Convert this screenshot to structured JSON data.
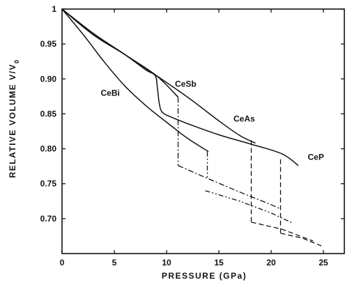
{
  "chart_data": {
    "type": "line",
    "xlabel": "PRESSURE   (GPa)",
    "ylabel": "RELATIVE VOLUME  V/V0",
    "ylabel_parts": {
      "text": "RELATIVE VOLUME  V/V",
      "subscript": "0"
    },
    "xlim": [
      0,
      27
    ],
    "ylim": [
      0.65,
      1.0
    ],
    "x_ticks": [
      0,
      5,
      10,
      15,
      20,
      25
    ],
    "y_ticks": [
      1,
      0.95,
      0.9,
      0.85,
      0.8,
      0.75,
      0.7
    ],
    "x_tick_labels": [
      "0",
      "5",
      "10",
      "15",
      "20",
      "25"
    ],
    "y_tick_labels": [
      "1",
      "0.95",
      "0.90",
      "0.85",
      "0.80",
      "0.75",
      "0.70"
    ],
    "grid": false,
    "series": [
      {
        "name": "CeBi",
        "line_style": "solid",
        "points": [
          [
            0,
            1.0
          ],
          [
            2,
            0.964
          ],
          [
            4,
            0.925
          ],
          [
            6,
            0.89
          ],
          [
            8,
            0.862
          ],
          [
            10,
            0.838
          ],
          [
            12,
            0.815
          ],
          [
            14,
            0.796
          ]
        ],
        "transition": {
          "style": "dash-dot-dot",
          "x": 13.9,
          "from": 0.796,
          "to": 0.756
        },
        "high_pressure": {
          "style": "dash-dot-dot",
          "points": [
            [
              13.7,
              0.74
            ],
            [
              17,
              0.725
            ],
            [
              20,
              0.708
            ],
            [
              22,
              0.694
            ]
          ]
        }
      },
      {
        "name": "CeSb",
        "line_style": "solid",
        "points": [
          [
            0,
            1.0
          ],
          [
            3,
            0.965
          ],
          [
            6,
            0.935
          ],
          [
            8,
            0.913
          ],
          [
            8.9,
            0.905
          ],
          [
            9.1,
            0.89
          ],
          [
            9.3,
            0.865
          ],
          [
            9.6,
            0.852
          ],
          [
            10.5,
            0.845
          ],
          [
            12,
            0.836
          ],
          [
            15,
            0.82
          ],
          [
            18,
            0.807
          ],
          [
            21,
            0.793
          ],
          [
            22.6,
            0.776
          ]
        ],
        "transition": {
          "style": "dash-dot",
          "x": 11.1,
          "from": 0.874,
          "to": 0.776
        },
        "high_pressure": {
          "style": "dash-dot",
          "points": [
            [
              11.1,
              0.776
            ],
            [
              14,
              0.757
            ],
            [
              17,
              0.738
            ],
            [
              20,
              0.72
            ],
            [
              20.9,
              0.714
            ]
          ]
        }
      },
      {
        "name": "CeAs",
        "line_style": "solid",
        "points": [
          [
            0,
            1.0
          ],
          [
            3,
            0.963
          ],
          [
            6,
            0.935
          ],
          [
            9,
            0.905
          ],
          [
            12,
            0.874
          ],
          [
            15,
            0.84
          ],
          [
            17,
            0.819
          ],
          [
            18.5,
            0.808
          ]
        ],
        "transition": {
          "style": "dashed",
          "x": 18.1,
          "from": 0.812,
          "to": 0.695
        },
        "high_pressure": {
          "style": "dashed",
          "points": [
            [
              18.1,
              0.695
            ],
            [
              21,
              0.685
            ],
            [
              24,
              0.668
            ]
          ]
        }
      },
      {
        "name": "CeP",
        "line_style": "solid",
        "points": [
          [
            0,
            1.0
          ],
          [
            3,
            0.965
          ],
          [
            6,
            0.935
          ],
          [
            9,
            0.905
          ],
          [
            11.1,
            0.874
          ]
        ],
        "transition": {
          "style": "dashed",
          "x": 20.9,
          "from": 0.785,
          "to": 0.679
        },
        "high_pressure": {
          "style": "dashed",
          "points": [
            [
              20.9,
              0.679
            ],
            [
              23,
              0.672
            ],
            [
              24.8,
              0.661
            ]
          ]
        }
      }
    ],
    "annotations": [
      {
        "text": "CeBi",
        "x": 3.7,
        "y": 0.876
      },
      {
        "text": "CeSb",
        "x": 10.8,
        "y": 0.889
      },
      {
        "text": "CeAs",
        "x": 16.4,
        "y": 0.839
      },
      {
        "text": "CeP",
        "x": 23.5,
        "y": 0.784
      }
    ]
  }
}
